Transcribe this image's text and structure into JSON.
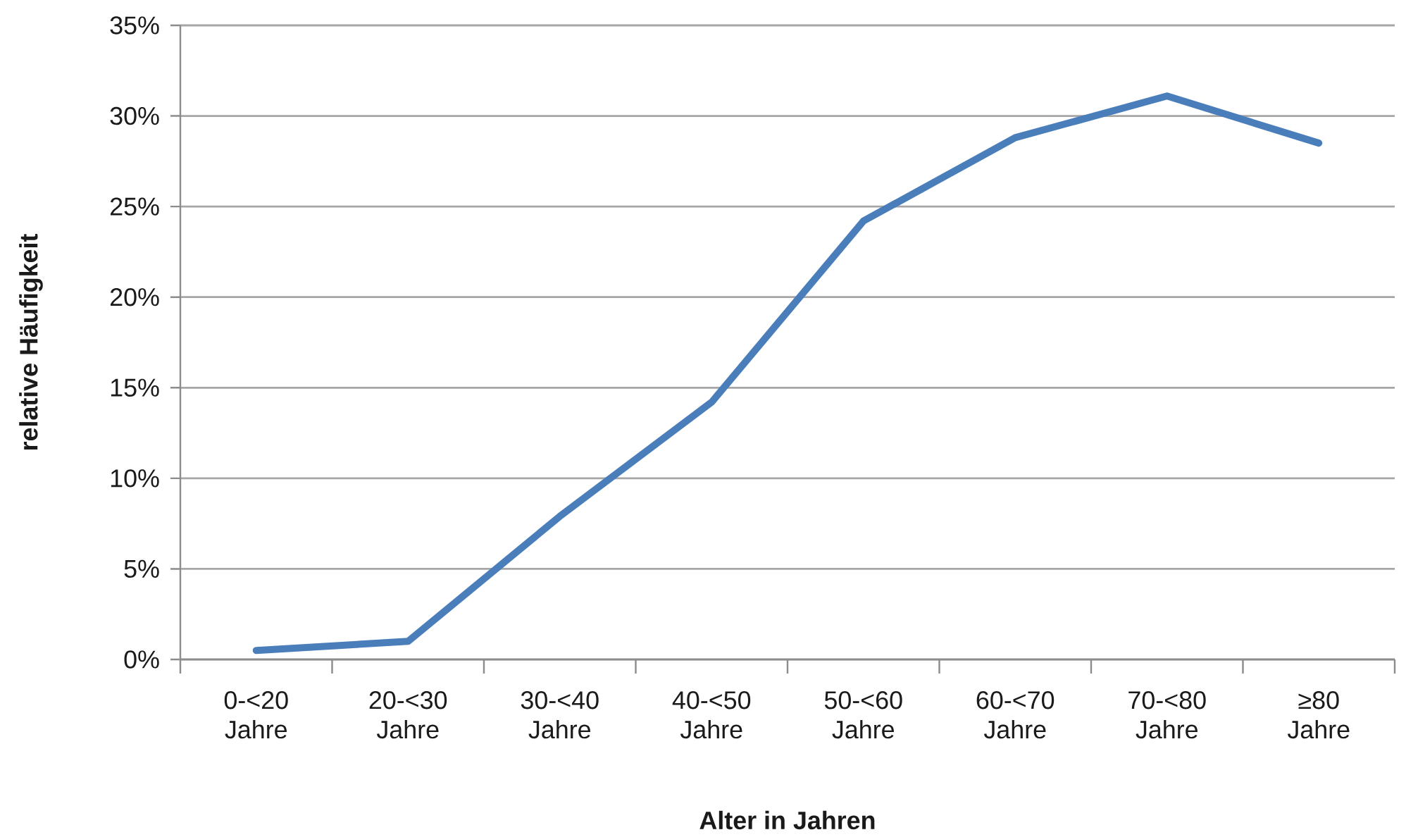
{
  "chart_data": {
    "type": "line",
    "xlabel": "Alter in Jahren",
    "ylabel": "relative Häufigkeit",
    "categories": [
      "0-<20 Jahre",
      "20-<30 Jahre",
      "30-<40 Jahre",
      "40-<50 Jahre",
      "50-<60 Jahre",
      "60-<70 Jahre",
      "70-<80 Jahre",
      "≥80 Jahre"
    ],
    "values": [
      0.5,
      1.0,
      7.9,
      14.2,
      24.2,
      28.8,
      31.1,
      28.5
    ],
    "color": "#4a7ebb",
    "ylim": [
      0,
      35
    ],
    "yticks": [
      {
        "value": 0,
        "label": "0%"
      },
      {
        "value": 5,
        "label": "5%"
      },
      {
        "value": 10,
        "label": "10%"
      },
      {
        "value": 15,
        "label": "15%"
      },
      {
        "value": 20,
        "label": "20%"
      },
      {
        "value": 25,
        "label": "25%"
      },
      {
        "value": 30,
        "label": "30%"
      },
      {
        "value": 35,
        "label": "35%"
      }
    ],
    "grid": "y"
  }
}
